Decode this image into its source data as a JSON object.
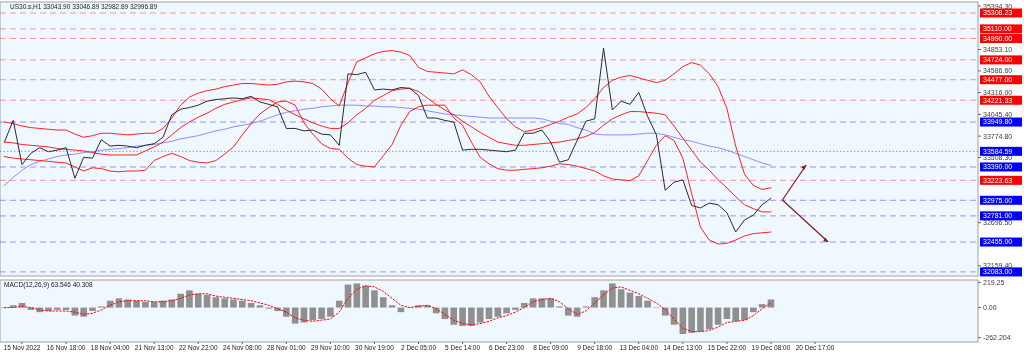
{
  "chart_data": [
    {
      "type": "line",
      "title": "US30.s,H1 33043.90 33046.89 32982.89 32996.89",
      "ylim": [
        32032,
        35445
      ],
      "tick_labels": "y",
      "categories": [
        null,
        null,
        null,
        null,
        null,
        null,
        null,
        null,
        null,
        null,
        null,
        null,
        null,
        null,
        null,
        null,
        null,
        null,
        null,
        null,
        null,
        null,
        null,
        null,
        null,
        null,
        null,
        null,
        null,
        null,
        null,
        null,
        null,
        null,
        null,
        null,
        null,
        null,
        null,
        null,
        null,
        null,
        null,
        null,
        null,
        null,
        null,
        null,
        null,
        null,
        null,
        null,
        null,
        null,
        null,
        null,
        null,
        null,
        null,
        null,
        null,
        null,
        null,
        null,
        null,
        null,
        null,
        null,
        null,
        null,
        null,
        null,
        null,
        null,
        null,
        null,
        null,
        null,
        null,
        null,
        null,
        null,
        null,
        null,
        null,
        null,
        null,
        null,
        null,
        null,
        null,
        null,
        null,
        null,
        null,
        null,
        null,
        null,
        null,
        null,
        null,
        null,
        null,
        null,
        null,
        null,
        null,
        null,
        null,
        null,
        null
      ],
      "yticks": [
        {
          "value": 35394.3,
          "label": "35394.30"
        },
        {
          "value": 34853.1,
          "label": "34853.10"
        },
        {
          "value": 34586.6,
          "label": "34586.60"
        },
        {
          "value": 34316,
          "label": "34316.00"
        },
        {
          "value": 34045.4,
          "label": "34045.40"
        },
        {
          "value": 33774.8,
          "label": "33774.80"
        },
        {
          "value": 33508.3,
          "label": "33508.30"
        },
        {
          "value": 32696.5,
          "label": "32696.50"
        },
        {
          "value": 32159.4,
          "label": "32159.40"
        }
      ],
      "ref_lines": [
        {
          "axis": "y",
          "value": 35308.23,
          "label": "35308.23",
          "color": "#ff0000"
        },
        {
          "axis": "y",
          "value": 35110,
          "label": "35110.00",
          "color": "#ff0000"
        },
        {
          "axis": "y",
          "value": 34990,
          "label": "34990.00",
          "color": "#ff0000"
        },
        {
          "axis": "y",
          "value": 34724,
          "label": "34724.00",
          "color": "#ff0000"
        },
        {
          "axis": "y",
          "value": 34477,
          "label": "34477.00",
          "color": "#ff0000"
        },
        {
          "axis": "y",
          "value": 34221.33,
          "label": "34221.33",
          "color": "#ff0000"
        },
        {
          "axis": "y",
          "value": 33949.8,
          "label": "33949.80",
          "color": "#0000ff"
        },
        {
          "axis": "y",
          "value": 33584.59,
          "label": "33584.59",
          "color": "#0000ff",
          "line_style": "dotted"
        },
        {
          "axis": "y",
          "value": 33390,
          "label": "33390.00",
          "color": "#0000ff"
        },
        {
          "axis": "y",
          "value": 33223.63,
          "label": "33223.63",
          "color": "#ff0000"
        },
        {
          "axis": "y",
          "value": 32975,
          "label": "32975.00",
          "color": "#0000ff"
        },
        {
          "axis": "y",
          "value": 32781,
          "label": "32781.00",
          "color": "#0000ff"
        },
        {
          "axis": "y",
          "value": 32455,
          "label": "32455.00",
          "color": "#0000ff"
        },
        {
          "axis": "y",
          "value": 32083,
          "label": "32083.00",
          "color": "#0000ff"
        }
      ],
      "series": [
        {
          "color": "#8c8cff",
          "values": [
            33160,
            33260,
            33350,
            33420,
            33460,
            33490,
            33520,
            33540,
            33550,
            33570,
            33580,
            33600,
            33610,
            33620,
            33630,
            33650,
            33660,
            33670,
            33690,
            33710,
            33740,
            33760,
            33780,
            33810,
            33840,
            33860,
            33890,
            33910,
            33930,
            33960,
            34000,
            34040,
            34070,
            34090,
            34110,
            34120,
            34140,
            34150,
            34160,
            34160,
            34160,
            34150,
            34150,
            34140,
            34140,
            34130,
            34120,
            34110,
            34090,
            34070,
            34050,
            34040,
            34030,
            34020,
            34010,
            34000,
            34000,
            34000,
            34000,
            34000,
            34000,
            33990,
            33960,
            33930,
            33920,
            33880,
            33850,
            33800,
            33790,
            33790,
            33790,
            33790,
            33800,
            33810,
            33810,
            33790,
            33760,
            33730,
            33710,
            33680,
            33650,
            33630,
            33600,
            33560,
            33520,
            33480,
            33440,
            33410,
            null,
            null,
            null,
            null,
            null,
            null,
            null,
            null,
            null,
            null,
            null,
            null,
            null,
            null,
            null,
            null,
            null,
            null,
            null,
            null,
            null,
            null,
            null
          ]
        },
        {
          "color": "#ff2020",
          "values": [
            33950,
            33930,
            33900,
            33880,
            33870,
            33860,
            33850,
            33850,
            33800,
            33760,
            33780,
            33810,
            33810,
            33800,
            33790,
            33800,
            33810,
            33810,
            33870,
            34000,
            34160,
            34260,
            34310,
            34340,
            34360,
            34390,
            34410,
            34430,
            34430,
            34420,
            34410,
            34420,
            34450,
            34460,
            34450,
            34430,
            34360,
            34240,
            34150,
            34440,
            34700,
            34750,
            34800,
            34830,
            34840,
            34820,
            34780,
            34630,
            34580,
            34570,
            34560,
            34550,
            34600,
            34540,
            34450,
            34270,
            34130,
            33990,
            33890,
            33830,
            33850,
            33880,
            33920,
            33960,
            34010,
            34050,
            34130,
            34240,
            34380,
            34470,
            34510,
            34530,
            34500,
            34470,
            34440,
            34470,
            34550,
            34640,
            34690,
            34660,
            34550,
            34390,
            34120,
            33650,
            33300,
            33160,
            33110,
            33130,
            null,
            null,
            null,
            null,
            null,
            null,
            null,
            null,
            null,
            null,
            null,
            null,
            null,
            null,
            null,
            null,
            null,
            null,
            null,
            null,
            null,
            null,
            null
          ]
        },
        {
          "color": "#ff2020",
          "values": [
            33700,
            33690,
            33670,
            33660,
            33650,
            33640,
            33620,
            33610,
            33600,
            33590,
            33570,
            33550,
            33540,
            33540,
            33540,
            33540,
            33590,
            33640,
            33700,
            33790,
            33880,
            33950,
            34010,
            34060,
            34120,
            34170,
            34200,
            34230,
            34250,
            34240,
            34230,
            34170,
            34100,
            34040,
            33990,
            33940,
            33900,
            33870,
            33870,
            33940,
            34040,
            34120,
            34220,
            34280,
            34340,
            34360,
            34370,
            34330,
            34250,
            34170,
            34100,
            34040,
            33960,
            33890,
            33820,
            33760,
            33700,
            33680,
            33660,
            33660,
            33670,
            33680,
            33690,
            33700,
            33720,
            33740,
            33770,
            33820,
            33910,
            33990,
            34040,
            34080,
            34080,
            34070,
            34060,
            34040,
            33900,
            33750,
            33600,
            33450,
            33350,
            33230,
            33130,
            33020,
            32920,
            32870,
            32830,
            32830,
            null,
            null,
            null,
            null,
            null,
            null,
            null,
            null,
            null,
            null,
            null,
            null,
            null,
            null,
            null,
            null,
            null,
            null,
            null,
            null,
            null,
            null,
            null
          ]
        },
        {
          "color": "#ff2020",
          "values": [
            33520,
            33500,
            33490,
            33480,
            33470,
            33460,
            33450,
            33440,
            33390,
            33340,
            33380,
            33370,
            33340,
            33330,
            33340,
            33340,
            33350,
            33470,
            33520,
            33560,
            33520,
            33470,
            33450,
            33440,
            33470,
            33550,
            33640,
            33790,
            33930,
            34050,
            34130,
            34200,
            34210,
            34160,
            33940,
            33800,
            33680,
            33620,
            33610,
            33500,
            33420,
            33400,
            33390,
            33530,
            33670,
            33910,
            34080,
            34140,
            34160,
            34160,
            34160,
            34000,
            33910,
            33700,
            33510,
            33430,
            33370,
            33350,
            33350,
            33360,
            33370,
            33380,
            33400,
            33430,
            33420,
            33400,
            33370,
            33340,
            33280,
            33240,
            33230,
            33220,
            33280,
            33470,
            33660,
            33780,
            33720,
            33500,
            33060,
            32640,
            32480,
            32430,
            32440,
            32480,
            32530,
            32560,
            32570,
            32580,
            null,
            null,
            null,
            null,
            null,
            null,
            null,
            null,
            null,
            null,
            null,
            null,
            null,
            null,
            null,
            null,
            null,
            null,
            null,
            null,
            null,
            null,
            null
          ]
        },
        {
          "color": "#2b2b2b",
          "values": [
            33700,
            33970,
            33420,
            33560,
            33630,
            33580,
            33600,
            33630,
            33250,
            33510,
            33500,
            33730,
            33650,
            33660,
            33650,
            33630,
            33660,
            33680,
            33760,
            34040,
            34110,
            34130,
            34160,
            34210,
            34230,
            34240,
            34250,
            34240,
            34270,
            34200,
            34170,
            34140,
            33870,
            33870,
            33840,
            33850,
            33800,
            33790,
            33660,
            34550,
            34540,
            34570,
            34350,
            34360,
            34350,
            34380,
            34370,
            34280,
            34000,
            34000,
            33970,
            33950,
            33600,
            33610,
            33610,
            33600,
            33590,
            33580,
            33600,
            33810,
            33810,
            33850,
            33700,
            33450,
            33480,
            33720,
            33960,
            33990,
            34870,
            34100,
            34210,
            34170,
            34320,
            34020,
            33790,
            33100,
            33200,
            33230,
            32910,
            32880,
            32940,
            32920,
            32820,
            32580,
            32730,
            32790,
            32920,
            33000,
            null,
            null,
            null,
            null,
            null,
            null,
            null,
            null,
            null,
            null,
            null,
            null,
            null,
            null,
            null,
            null,
            null,
            null,
            null,
            null,
            null,
            null,
            null
          ]
        }
      ]
    },
    {
      "type": "bar",
      "title": "MACD(12,26,9) 63.546 40.308",
      "ylim": [
        -300,
        240
      ],
      "categories": [
        null,
        null,
        "15 Nov 2022",
        null,
        null,
        null,
        null,
        "16 Nov 18:00",
        null,
        null,
        null,
        null,
        "18 Nov 04:00",
        null,
        null,
        null,
        null,
        "21 Nov 13:00",
        null,
        null,
        null,
        null,
        "22 Nov 22:00",
        null,
        null,
        null,
        null,
        "24 Nov 08:00",
        null,
        null,
        null,
        null,
        "28 Nov 01:00",
        null,
        null,
        null,
        null,
        "29 Nov 10:00",
        null,
        null,
        null,
        null,
        "30 Nov 19:00",
        null,
        null,
        null,
        null,
        "2 Dec 05:00",
        null,
        null,
        null,
        null,
        "5 Dec 14:00",
        null,
        null,
        null,
        null,
        "6 Dec 23:00",
        null,
        null,
        null,
        null,
        "8 Dec 09:00",
        null,
        null,
        null,
        null,
        "9 Dec 18:00",
        null,
        null,
        null,
        null,
        "13 Dec 04:00",
        null,
        null,
        null,
        null,
        "14 Dec 13:00",
        null,
        null,
        null,
        null,
        "15 Dec 22:00",
        null,
        null,
        null,
        null,
        "19 Dec 08:00",
        null,
        null,
        null,
        null,
        "20 Dec 17:00",
        null,
        null,
        null,
        null,
        null,
        null,
        null,
        null,
        null,
        null,
        null,
        null,
        null,
        null,
        null,
        null,
        null,
        null
      ],
      "yticks": [
        {
          "value": 219.25,
          "label": "219.25"
        },
        {
          "value": 0,
          "label": "0.00"
        },
        {
          "value": -262.204,
          "label": "-262.204"
        }
      ],
      "series": [
        {
          "color": "#909090",
          "values": [
            0,
            20,
            40,
            -20,
            -40,
            -30,
            -20,
            -20,
            -70,
            -80,
            -30,
            10,
            60,
            80,
            70,
            60,
            50,
            50,
            60,
            70,
            120,
            150,
            120,
            110,
            90,
            80,
            70,
            60,
            40,
            20,
            -10,
            -30,
            -80,
            -140,
            -130,
            -110,
            -100,
            -80,
            60,
            200,
            210,
            190,
            150,
            90,
            20,
            -40,
            0,
            20,
            20,
            -50,
            -100,
            -150,
            -160,
            -160,
            -130,
            -100,
            -80,
            -50,
            -20,
            40,
            80,
            80,
            80,
            10,
            -70,
            -80,
            10,
            90,
            150,
            210,
            160,
            130,
            100,
            60,
            0,
            -70,
            -150,
            -230,
            -220,
            -210,
            -190,
            -150,
            -100,
            -120,
            -110,
            -40,
            30,
            70,
            null,
            null,
            null,
            null,
            null,
            null,
            null,
            null,
            null,
            null,
            null,
            null,
            null,
            null,
            null,
            null,
            null,
            null,
            null,
            null,
            null,
            null,
            null
          ]
        },
        {
          "type": "line",
          "color": "#ff0000",
          "line_style": "dotted",
          "values": [
            0,
            0,
            10,
            0,
            -20,
            -30,
            -30,
            -30,
            -40,
            -60,
            -50,
            -20,
            20,
            50,
            60,
            60,
            60,
            50,
            50,
            60,
            80,
            110,
            120,
            120,
            100,
            90,
            80,
            70,
            60,
            40,
            20,
            -10,
            -40,
            -90,
            -110,
            -120,
            -110,
            -100,
            -40,
            80,
            160,
            190,
            180,
            140,
            80,
            20,
            0,
            10,
            20,
            -10,
            -60,
            -110,
            -140,
            -150,
            -140,
            -120,
            -90,
            -70,
            -40,
            0,
            50,
            70,
            80,
            50,
            -10,
            -60,
            -30,
            40,
            110,
            170,
            180,
            150,
            120,
            80,
            40,
            -20,
            -100,
            -180,
            -210,
            -210,
            -200,
            -170,
            -130,
            -120,
            -110,
            -70,
            -10,
            40,
            null,
            null,
            null,
            null,
            null,
            null,
            null,
            null,
            null,
            null,
            null,
            null,
            null,
            null,
            null,
            null,
            null,
            null,
            null,
            null,
            null,
            null,
            null
          ]
        }
      ]
    }
  ]
}
